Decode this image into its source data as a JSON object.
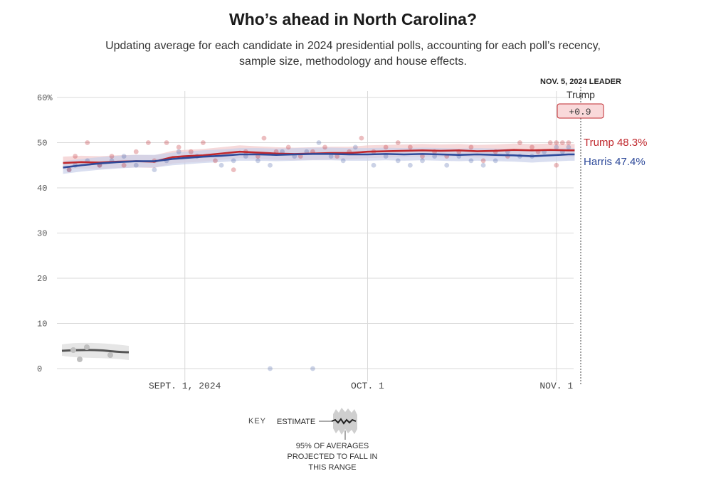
{
  "header": {
    "title": "Who’s ahead in North Carolina?",
    "subtitle_line1": "Updating average for each candidate in 2024 presidential polls, accounting for each poll’s recency,",
    "subtitle_line2": "sample size, methodology and house effects."
  },
  "leader_box": {
    "heading": "NOV. 5, 2024 LEADER",
    "name": "Trump",
    "margin": "+0.9"
  },
  "end_labels": {
    "trump": "Trump 48.3%",
    "harris": "Harris 47.4%"
  },
  "key": {
    "label": "KEY",
    "estimate": "ESTIMATE",
    "range_line1": "95% OF AVERAGES",
    "range_line2": "PROJECTED TO FALL IN",
    "range_line3": "THIS RANGE"
  },
  "colors": {
    "trump": "#c0282d",
    "harris": "#2e4a9a",
    "trump_band": "#f2c9cb",
    "harris_band": "#c9d0ea",
    "grid": "#d9d9d9",
    "badge_fill": "#f9d9da",
    "badge_stroke": "#c0282d"
  },
  "chart_data": {
    "type": "line",
    "title": "Who’s ahead in North Carolina?",
    "x_tick_labels": [
      "SEPT. 1, 2024",
      "OCT. 1",
      "NOV. 1"
    ],
    "y_tick_labels": [
      "60%",
      "50",
      "40",
      "30",
      "20",
      "10",
      "0"
    ],
    "y_ticks": [
      60,
      50,
      40,
      30,
      20,
      10,
      0
    ],
    "ylim": [
      0,
      60
    ],
    "xlim": [
      -21,
      65
    ],
    "x_ticks": [
      0,
      30,
      61
    ],
    "grid": true,
    "x_unit_note_hidden": "x values are days relative to Sept. 1, 2024",
    "series": [
      {
        "name": "Trump",
        "color_key": "trump",
        "final_label": "48.3%",
        "x": [
          -20,
          -17,
          -14,
          -11,
          -8,
          -5,
          -2,
          0,
          3,
          6,
          9,
          12,
          15,
          18,
          21,
          24,
          27,
          30,
          33,
          36,
          39,
          42,
          45,
          48,
          51,
          54,
          57,
          60,
          63,
          64
        ],
        "values": [
          45.5,
          45.7,
          45.6,
          45.8,
          45.9,
          45.8,
          46.8,
          47.0,
          47.2,
          47.6,
          48.0,
          47.8,
          47.6,
          47.5,
          47.6,
          47.7,
          47.7,
          48.0,
          48.1,
          48.2,
          48.3,
          48.2,
          48.3,
          48.1,
          48.2,
          48.4,
          48.3,
          48.4,
          48.3,
          48.3
        ],
        "band_halfwidth": 1.4
      },
      {
        "name": "Harris",
        "color_key": "harris",
        "final_label": "47.4%",
        "x": [
          -20,
          -17,
          -14,
          -11,
          -8,
          -5,
          -2,
          0,
          3,
          6,
          9,
          12,
          15,
          18,
          21,
          24,
          27,
          30,
          33,
          36,
          39,
          42,
          45,
          48,
          51,
          54,
          57,
          60,
          63,
          64
        ],
        "values": [
          44.5,
          45.0,
          45.4,
          45.7,
          45.9,
          45.9,
          46.4,
          46.6,
          46.9,
          47.1,
          47.4,
          47.4,
          47.3,
          47.4,
          47.5,
          47.5,
          47.4,
          47.4,
          47.5,
          47.4,
          47.5,
          47.4,
          47.3,
          47.4,
          47.3,
          47.2,
          47.0,
          47.2,
          47.4,
          47.4
        ],
        "band_halfwidth": 1.4
      }
    ],
    "polls_trump": [
      [
        -19,
        44
      ],
      [
        -18,
        47
      ],
      [
        -16,
        50
      ],
      [
        -14,
        45
      ],
      [
        -12,
        47
      ],
      [
        -10,
        45
      ],
      [
        -8,
        48
      ],
      [
        -6,
        50
      ],
      [
        -5,
        46
      ],
      [
        -3,
        50
      ],
      [
        -1,
        49
      ],
      [
        1,
        48
      ],
      [
        3,
        50
      ],
      [
        5,
        46
      ],
      [
        8,
        44
      ],
      [
        10,
        48
      ],
      [
        12,
        47
      ],
      [
        13,
        51
      ],
      [
        15,
        48
      ],
      [
        17,
        49
      ],
      [
        19,
        47
      ],
      [
        21,
        48
      ],
      [
        23,
        49
      ],
      [
        25,
        47
      ],
      [
        27,
        48
      ],
      [
        29,
        51
      ],
      [
        31,
        48
      ],
      [
        33,
        49
      ],
      [
        35,
        50
      ],
      [
        37,
        49
      ],
      [
        39,
        47
      ],
      [
        41,
        48
      ],
      [
        43,
        47
      ],
      [
        45,
        48
      ],
      [
        47,
        49
      ],
      [
        49,
        46
      ],
      [
        51,
        48
      ],
      [
        53,
        47
      ],
      [
        55,
        50
      ],
      [
        57,
        49
      ],
      [
        58,
        48
      ],
      [
        60,
        50
      ],
      [
        61,
        50
      ],
      [
        62,
        50
      ],
      [
        63,
        50
      ],
      [
        61,
        45
      ]
    ],
    "polls_harris": [
      [
        -19,
        44
      ],
      [
        -18,
        45
      ],
      [
        -16,
        46
      ],
      [
        -14,
        45
      ],
      [
        -12,
        46
      ],
      [
        -10,
        47
      ],
      [
        -8,
        45
      ],
      [
        -5,
        44
      ],
      [
        -3,
        46
      ],
      [
        -1,
        48
      ],
      [
        2,
        47
      ],
      [
        6,
        45
      ],
      [
        8,
        46
      ],
      [
        10,
        47
      ],
      [
        12,
        46
      ],
      [
        14,
        45
      ],
      [
        16,
        48
      ],
      [
        18,
        47
      ],
      [
        20,
        48
      ],
      [
        22,
        50
      ],
      [
        24,
        47
      ],
      [
        26,
        46
      ],
      [
        28,
        49
      ],
      [
        31,
        45
      ],
      [
        33,
        47
      ],
      [
        35,
        46
      ],
      [
        37,
        45
      ],
      [
        39,
        46
      ],
      [
        41,
        47
      ],
      [
        43,
        45
      ],
      [
        45,
        47
      ],
      [
        47,
        46
      ],
      [
        49,
        45
      ],
      [
        51,
        46
      ],
      [
        53,
        48
      ],
      [
        55,
        47
      ],
      [
        57,
        47
      ],
      [
        59,
        48
      ],
      [
        61,
        49
      ],
      [
        62,
        48
      ],
      [
        63,
        49
      ],
      [
        14,
        0
      ],
      [
        21,
        0
      ]
    ]
  }
}
